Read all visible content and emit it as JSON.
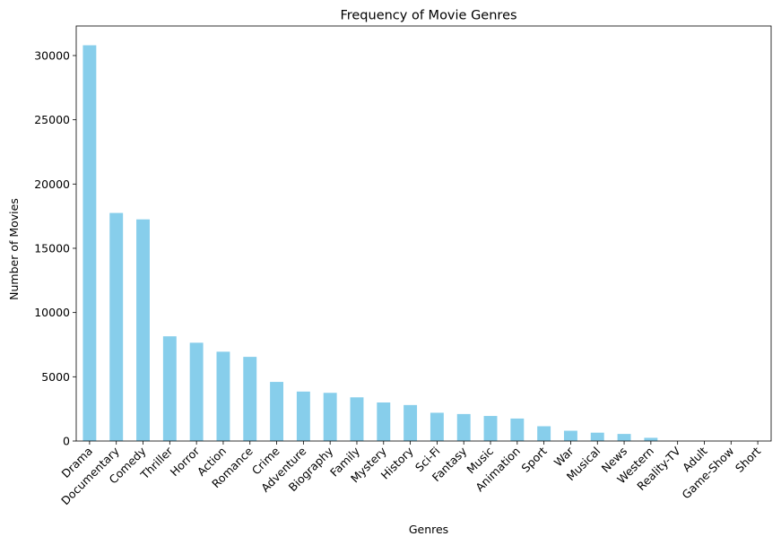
{
  "chart_data": {
    "type": "bar",
    "title": "Frequency of Movie Genres",
    "xlabel": "Genres",
    "ylabel": "Number of Movies",
    "bar_color": "#87ceeb",
    "grid": false,
    "ylim": [
      0,
      32300
    ],
    "yticks": [
      0,
      5000,
      10000,
      15000,
      20000,
      25000,
      30000
    ],
    "categories": [
      "Drama",
      "Documentary",
      "Comedy",
      "Thriller",
      "Horror",
      "Action",
      "Romance",
      "Crime",
      "Adventure",
      "Biography",
      "Family",
      "Mystery",
      "History",
      "Sci-Fi",
      "Fantasy",
      "Music",
      "Animation",
      "Sport",
      "War",
      "Musical",
      "News",
      "Western",
      "Reality-TV",
      "Adult",
      "Game-Show",
      "Short"
    ],
    "values": [
      30800,
      17750,
      17250,
      8150,
      7650,
      6950,
      6550,
      4600,
      3850,
      3750,
      3400,
      3000,
      2800,
      2200,
      2100,
      1950,
      1750,
      1150,
      800,
      650,
      550,
      250,
      0,
      0,
      0,
      0
    ]
  }
}
